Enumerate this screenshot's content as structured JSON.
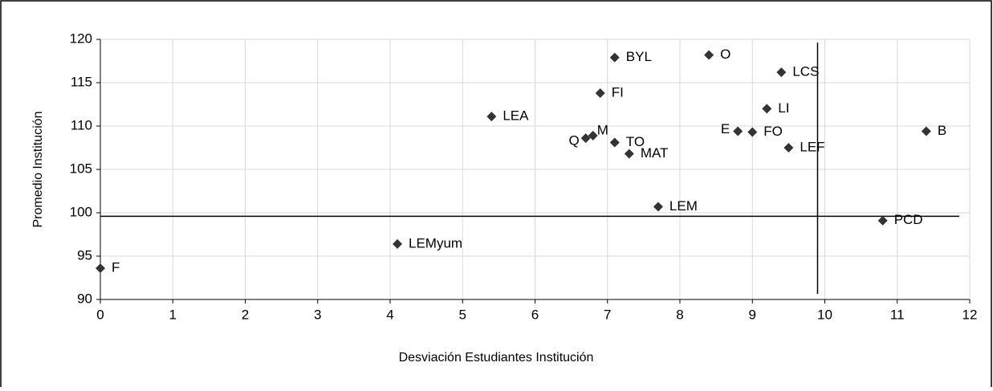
{
  "chart_data": {
    "type": "scatter",
    "xlabel": "Desviación Estudiantes Institución",
    "ylabel": "Promedio Institución",
    "labels": [
      "F",
      "LEMyum",
      "LEA",
      "Q",
      "M",
      "TO",
      "MAT",
      "FI",
      "BYL",
      "LEM",
      "O",
      "LCS",
      "LI",
      "E",
      "FO",
      "LEF",
      "PCD",
      "B"
    ],
    "x": [
      0,
      4.1,
      5.4,
      6.7,
      6.8,
      7.1,
      7.3,
      6.9,
      7.1,
      7.7,
      8.4,
      9.4,
      9.2,
      8.8,
      9.0,
      9.5,
      10.8,
      11.4
    ],
    "values": [
      93.6,
      96.4,
      111.1,
      108.6,
      108.9,
      108.1,
      106.8,
      113.8,
      117.9,
      100.7,
      118.2,
      116.2,
      112.0,
      109.4,
      109.3,
      107.5,
      99.1,
      109.4
    ],
    "color": "#333333",
    "reference_lines": {
      "x": 9.9,
      "y": 99.6
    },
    "xlim": [
      0,
      12
    ],
    "xticks": [
      0,
      1,
      2,
      3,
      4,
      5,
      6,
      7,
      8,
      9,
      10,
      11,
      12
    ],
    "ylim": [
      90,
      120
    ],
    "yticks": [
      90,
      95,
      100,
      105,
      110,
      115,
      120
    ],
    "grid": true
  }
}
